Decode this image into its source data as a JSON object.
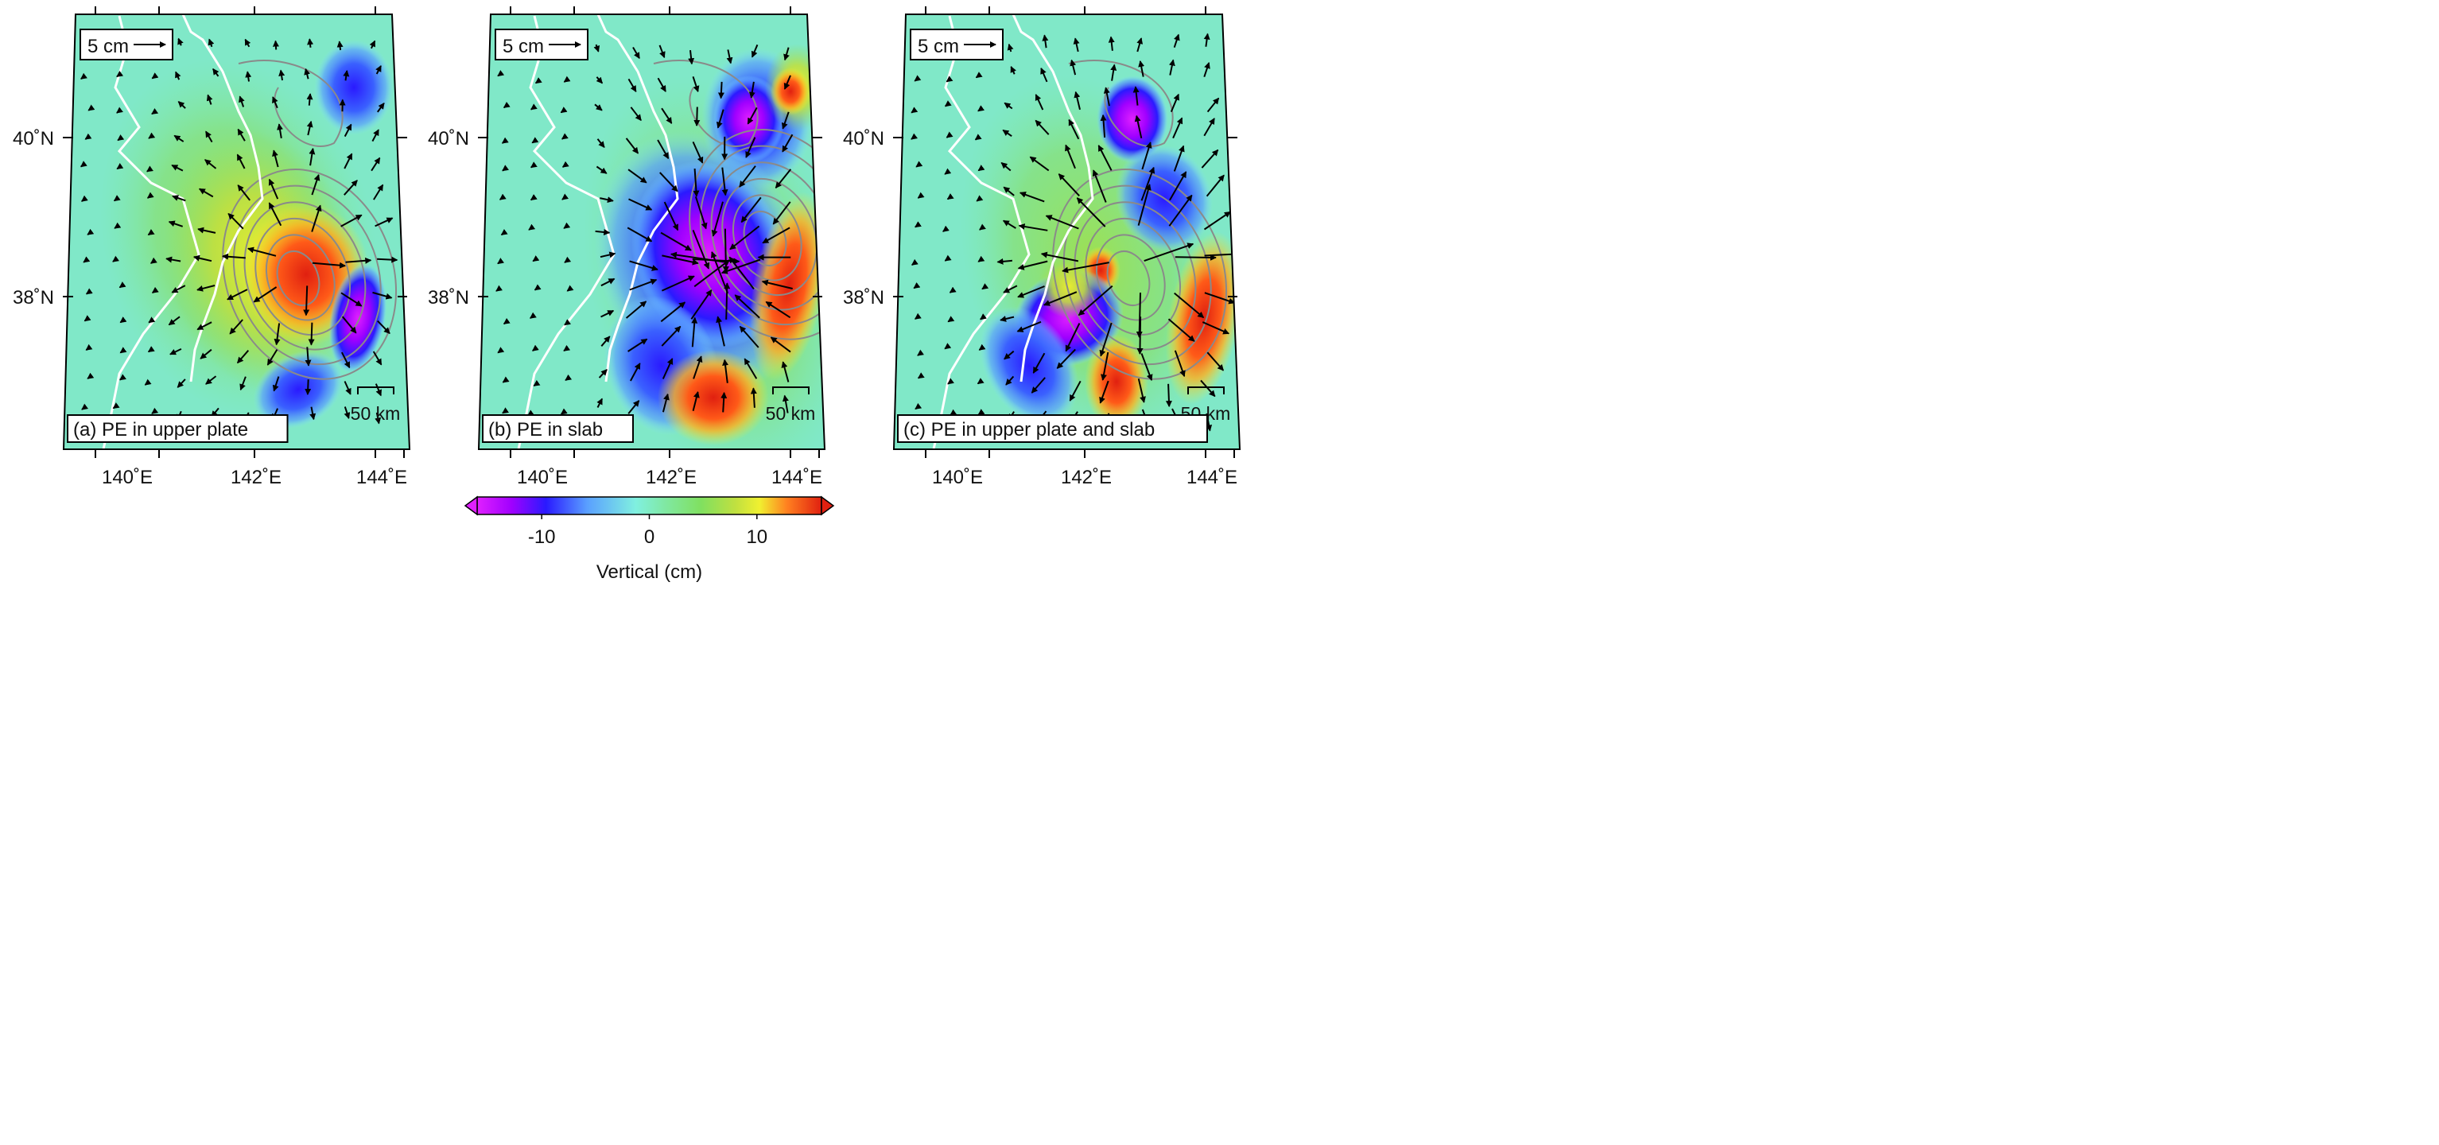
{
  "panels": [
    {
      "id": "a",
      "label": "(a) PE in upper plate",
      "variant": "upper"
    },
    {
      "id": "b",
      "label": "(b) PE in slab",
      "variant": "slab"
    },
    {
      "id": "c",
      "label": "(c) PE in upper plate and slab",
      "variant": "both"
    }
  ],
  "reference_vector_label": "5 cm",
  "scale_bar_label": "50 km",
  "lat_labels": [
    "40˚N",
    "38˚N"
  ],
  "lon_labels": [
    "140˚E",
    "142˚E",
    "144˚E"
  ],
  "colorbar": {
    "title": "Vertical (cm)",
    "tick_labels": [
      "-10",
      "0",
      "10"
    ],
    "range": [
      -16,
      16
    ],
    "ticks": [
      -10,
      0,
      10
    ],
    "colors": [
      "#e020ff",
      "#a000ff",
      "#2a1aff",
      "#5aa0ff",
      "#80f0e0",
      "#80e8a0",
      "#80e060",
      "#c0e040",
      "#f0f030",
      "#ff8020",
      "#e02010"
    ]
  },
  "colors": {
    "background": "#80e8c8",
    "coastline": "#ffffff",
    "contour": "#8a8a8a",
    "vector": "#000000",
    "frame": "#000000"
  }
}
